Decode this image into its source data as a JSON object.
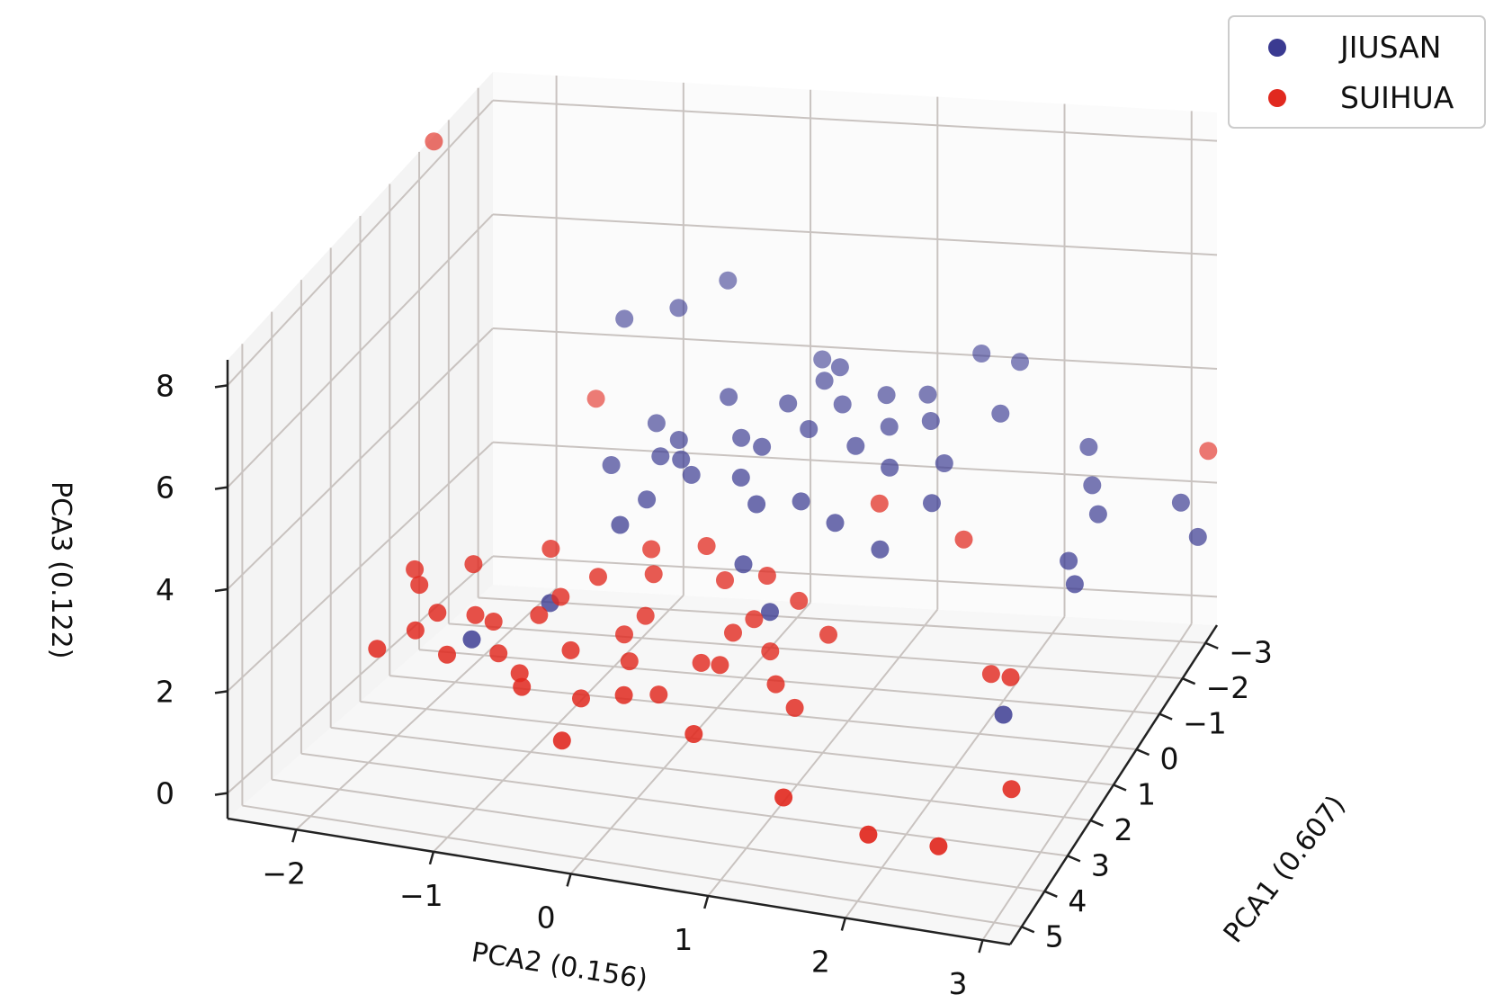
{
  "chart_data": {
    "type": "scatter",
    "projection": "3d",
    "xlabel": "PCA1 (0.607)",
    "ylabel": "PCA2 (0.156)",
    "zlabel": "PCA3 (0.122)",
    "xlim": [
      -3.5,
      5.5
    ],
    "ylim": [
      -2.5,
      3.2
    ],
    "zlim": [
      -0.5,
      8.5
    ],
    "x_ticks": [
      "−3",
      "−2",
      "−1",
      "0",
      "1",
      "2",
      "3",
      "4",
      "5"
    ],
    "y_ticks": [
      "−2",
      "−1",
      "0",
      "1",
      "2",
      "3"
    ],
    "z_ticks": [
      "0",
      "2",
      "4",
      "6",
      "8"
    ],
    "grid": true,
    "legend_position": "top-right",
    "series": [
      {
        "name": "JIUSAN",
        "color": "#3a3a91",
        "points": [
          [
            -0.6,
            -0.4,
            3.6
          ],
          [
            -0.8,
            -0.6,
            3.5
          ],
          [
            -1.0,
            -0.5,
            3.7
          ],
          [
            -0.5,
            -0.3,
            3.4
          ],
          [
            -1.4,
            -0.2,
            4.3
          ],
          [
            -0.9,
            0.0,
            3.9
          ],
          [
            -1.2,
            0.3,
            4.4
          ],
          [
            -1.6,
            0.5,
            4.6
          ],
          [
            -1.0,
            0.5,
            4.1
          ],
          [
            -0.7,
            0.2,
            3.9
          ],
          [
            -1.3,
            0.7,
            4.4
          ],
          [
            -1.5,
            1.0,
            4.5
          ],
          [
            -1.1,
            1.1,
            4.2
          ],
          [
            -0.8,
            0.9,
            4.0
          ],
          [
            -1.6,
            1.3,
            4.5
          ],
          [
            -1.2,
            1.4,
            4.3
          ],
          [
            -0.6,
            1.2,
            3.8
          ],
          [
            -0.2,
            0.6,
            3.3
          ],
          [
            0.0,
            0.3,
            3.3
          ],
          [
            -0.4,
            0.1,
            3.5
          ],
          [
            -0.3,
            -0.6,
            3.0
          ],
          [
            -0.9,
            -1.0,
            3.2
          ],
          [
            -0.2,
            1.6,
            3.5
          ],
          [
            -0.7,
            1.6,
            3.9
          ],
          [
            -1.6,
            -0.8,
            3.6
          ],
          [
            -2.5,
            0.3,
            4.4
          ],
          [
            -2.2,
            1.6,
            4.9
          ],
          [
            -2.2,
            1.9,
            4.8
          ],
          [
            -1.3,
            2.6,
            4.0
          ],
          [
            -0.9,
            2.7,
            3.6
          ],
          [
            -0.6,
            2.8,
            3.3
          ],
          [
            0.1,
            2.7,
            2.9
          ],
          [
            0.4,
            2.8,
            2.7
          ],
          [
            -2.4,
            -0.8,
            5.2
          ],
          [
            -2.8,
            -0.5,
            5.5
          ],
          [
            -2.3,
            -1.2,
            5.0
          ],
          [
            -1.7,
            0.6,
            4.8
          ],
          [
            -1.4,
            1.9,
            4.4
          ],
          [
            0.2,
            -0.7,
            2.8
          ],
          [
            0.5,
            0.3,
            2.5
          ],
          [
            1.3,
            -1.0,
            1.9
          ],
          [
            1.0,
            0.6,
            2.0
          ],
          [
            2.2,
            -1.4,
            1.6
          ],
          [
            2.3,
            2.6,
            1.5
          ],
          [
            -0.8,
            3.4,
            3.5
          ],
          [
            -0.4,
            3.6,
            3.2
          ],
          [
            0.0,
            0.9,
            3.1
          ],
          [
            0.3,
            1.3,
            2.9
          ]
        ]
      },
      {
        "name": "SUIHUA",
        "color": "#e1291f",
        "points": [
          [
            -1.5,
            -2.5,
            8.4
          ],
          [
            1.7,
            -1.0,
            1.9
          ],
          [
            1.9,
            -1.3,
            1.8
          ],
          [
            2.0,
            -0.7,
            1.5
          ],
          [
            1.6,
            -1.5,
            1.7
          ],
          [
            2.2,
            -1.2,
            1.4
          ],
          [
            1.5,
            -0.4,
            1.6
          ],
          [
            1.8,
            -0.3,
            1.3
          ],
          [
            2.4,
            -1.0,
            1.2
          ],
          [
            2.0,
            -1.7,
            1.9
          ],
          [
            1.4,
            -0.9,
            2.1
          ],
          [
            1.2,
            -0.3,
            1.8
          ],
          [
            2.6,
            -0.5,
            1.0
          ],
          [
            1.6,
            0.2,
            1.3
          ],
          [
            2.2,
            0.0,
            1.0
          ],
          [
            2.6,
            -1.5,
            1.5
          ],
          [
            1.1,
            0.5,
            1.9
          ],
          [
            1.5,
            0.7,
            1.6
          ],
          [
            1.8,
            0.8,
            1.2
          ],
          [
            2.1,
            1.0,
            1.0
          ],
          [
            0.9,
            0.8,
            2.2
          ],
          [
            1.3,
            1.1,
            1.9
          ],
          [
            0.7,
            0.2,
            2.3
          ],
          [
            0.5,
            -0.4,
            2.6
          ],
          [
            0.8,
            -1.1,
            2.6
          ],
          [
            1.2,
            -1.6,
            2.4
          ],
          [
            1.7,
            -1.9,
            2.2
          ],
          [
            1.4,
            -2.0,
            2.3
          ],
          [
            2.3,
            -1.8,
            1.7
          ],
          [
            2.7,
            -2.0,
            1.5
          ],
          [
            3.3,
            -0.5,
            0.6
          ],
          [
            3.6,
            1.2,
            0.3
          ],
          [
            4.0,
            1.9,
            0.1
          ],
          [
            3.9,
            2.4,
            0.0
          ],
          [
            3.1,
            2.8,
            0.7
          ],
          [
            2.0,
            2.6,
            2.0
          ],
          [
            1.7,
            2.4,
            1.8
          ],
          [
            -2.0,
            3.4,
            3.6
          ],
          [
            -2.2,
            -1.4,
            3.6
          ],
          [
            0.1,
            1.9,
            3.1
          ],
          [
            -0.2,
            1.2,
            3.4
          ],
          [
            0.4,
            0.0,
            2.7
          ],
          [
            0.9,
            -0.3,
            2.4
          ],
          [
            1.4,
            0.4,
            1.8
          ],
          [
            1.0,
            -0.7,
            2.3
          ],
          [
            2.8,
            -0.9,
            1.2
          ],
          [
            2.5,
            -0.2,
            1.1
          ],
          [
            2.9,
            0.4,
            0.8
          ],
          [
            0.6,
            0.5,
            2.4
          ],
          [
            1.9,
            0.4,
            1.5
          ]
        ]
      }
    ]
  }
}
